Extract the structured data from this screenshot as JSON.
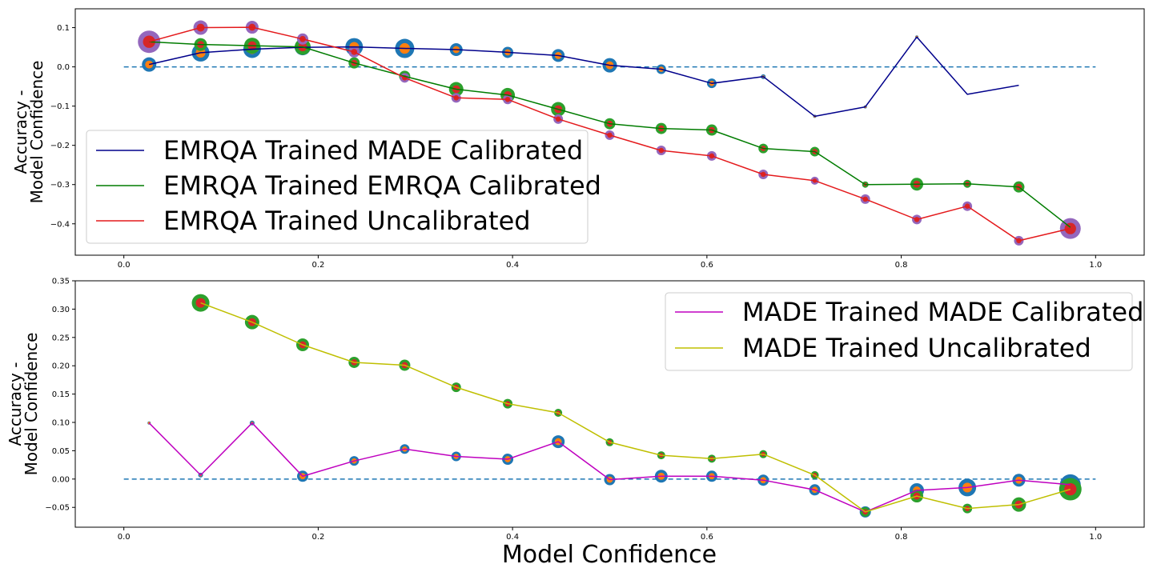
{
  "figure": {
    "xlabel": "Model Confidence",
    "colors": {
      "baseline": "#1f77b4",
      "scatter_blue": "#1f77b4",
      "scatter_orange": "#ff7f0e",
      "scatter_green": "#2ca02c",
      "scatter_red": "#d62728",
      "scatter_purple": "#9467bd"
    }
  },
  "chart_data": [
    {
      "type": "line",
      "ylabel_line1": "Accuracy -",
      "ylabel_line2": "Model Confidence",
      "xlim": [
        -0.05,
        1.05
      ],
      "ylim": [
        -0.48,
        0.148
      ],
      "xticks": [
        0.0,
        0.2,
        0.4,
        0.6,
        0.8,
        1.0
      ],
      "xtick_labels": [
        "0.0",
        "0.2",
        "0.4",
        "0.6",
        "0.8",
        "1.0"
      ],
      "yticks": [
        0.1,
        0.0,
        -0.1,
        -0.2,
        -0.3,
        -0.4
      ],
      "ytick_labels": [
        "0.1",
        "0.0",
        "−0.1",
        "−0.2",
        "−0.3",
        "−0.4"
      ],
      "legend_position": "lower-left",
      "baseline_y": 0.0,
      "series": [
        {
          "name": "EMRQA Trained MADE Calibrated",
          "color": "#00008b",
          "marker_color": "#1f77b4",
          "marker_inner": "#ff7f0e",
          "x": [
            0.026,
            0.079,
            0.132,
            0.184,
            0.237,
            0.289,
            0.342,
            0.395,
            0.447,
            0.5,
            0.553,
            0.605,
            0.658,
            0.711,
            0.763,
            0.816,
            0.868,
            0.921
          ],
          "y": [
            0.006,
            0.036,
            0.045,
            0.05,
            0.051,
            0.047,
            0.044,
            0.037,
            0.029,
            0.004,
            -0.006,
            -0.042,
            -0.025,
            -0.126,
            -0.102,
            0.076,
            -0.07,
            -0.047
          ],
          "sizes": [
            9,
            11,
            11,
            10,
            11,
            12,
            8,
            7,
            8,
            9,
            6,
            6,
            3,
            2,
            2,
            2,
            0,
            0
          ]
        },
        {
          "name": "EMRQA Trained EMRQA Calibrated",
          "color": "#007c00",
          "marker_color": "#2ca02c",
          "marker_inner": "#d62728",
          "x": [
            0.026,
            0.079,
            0.132,
            0.184,
            0.237,
            0.289,
            0.342,
            0.395,
            0.447,
            0.5,
            0.553,
            0.605,
            0.658,
            0.711,
            0.763,
            0.816,
            0.868,
            0.921,
            0.974
          ],
          "y": [
            0.064,
            0.057,
            0.054,
            0.051,
            0.01,
            -0.024,
            -0.057,
            -0.072,
            -0.108,
            -0.145,
            -0.157,
            -0.161,
            -0.208,
            -0.216,
            -0.3,
            -0.299,
            -0.298,
            -0.306,
            -0.409
          ],
          "sizes": [
            2,
            8,
            10,
            10,
            7,
            7,
            9,
            9,
            9,
            7,
            7,
            7,
            6,
            6,
            4,
            8,
            5,
            7,
            9
          ]
        },
        {
          "name": "EMRQA Trained Uncalibrated",
          "color": "#e41a1c",
          "marker_color": "#9467bd",
          "marker_inner": "#d62728",
          "x": [
            0.026,
            0.079,
            0.132,
            0.184,
            0.237,
            0.289,
            0.342,
            0.395,
            0.447,
            0.5,
            0.553,
            0.605,
            0.658,
            0.711,
            0.763,
            0.816,
            0.868,
            0.921,
            0.974
          ],
          "y": [
            0.064,
            0.1,
            0.101,
            0.071,
            0.038,
            -0.028,
            -0.079,
            -0.083,
            -0.133,
            -0.174,
            -0.213,
            -0.227,
            -0.274,
            -0.29,
            -0.337,
            -0.389,
            -0.355,
            -0.443,
            -0.412
          ],
          "sizes": [
            14,
            9,
            8,
            7,
            7,
            6,
            6,
            6,
            6,
            6,
            6,
            6,
            6,
            5,
            6,
            6,
            6,
            6,
            13
          ]
        }
      ]
    },
    {
      "type": "line",
      "ylabel_line1": "Accuracy -",
      "ylabel_line2": "Model Confidence",
      "xlim": [
        -0.05,
        1.05
      ],
      "ylim": [
        -0.085,
        0.35
      ],
      "xticks": [
        0.0,
        0.2,
        0.4,
        0.6,
        0.8,
        1.0
      ],
      "xtick_labels": [
        "0.0",
        "0.2",
        "0.4",
        "0.6",
        "0.8",
        "1.0"
      ],
      "yticks": [
        0.35,
        0.3,
        0.25,
        0.2,
        0.15,
        0.1,
        0.05,
        0.0,
        -0.05
      ],
      "ytick_labels": [
        "0.35",
        "0.30",
        "0.25",
        "0.20",
        "0.15",
        "0.10",
        "0.05",
        "0.00",
        "−0.05"
      ],
      "legend_position": "upper-right",
      "baseline_y": 0.0,
      "series": [
        {
          "name": "MADE Trained MADE Calibrated",
          "color": "#bf00bf",
          "marker_color": "#1f77b4",
          "marker_inner": "#ff7f0e",
          "x": [
            0.026,
            0.079,
            0.132,
            0.184,
            0.237,
            0.289,
            0.342,
            0.395,
            0.447,
            0.5,
            0.553,
            0.605,
            0.658,
            0.711,
            0.763,
            0.816,
            0.868,
            0.921,
            0.974
          ],
          "y": [
            0.099,
            0.007,
            0.099,
            0.005,
            0.032,
            0.053,
            0.04,
            0.035,
            0.066,
            -0.001,
            0.005,
            0.005,
            -0.002,
            -0.019,
            -0.058,
            -0.02,
            -0.015,
            -0.002,
            -0.01
          ],
          "sizes": [
            2,
            3,
            3,
            7,
            6,
            6,
            6,
            7,
            8,
            7,
            8,
            7,
            7,
            7,
            7,
            9,
            11,
            8,
            13
          ]
        },
        {
          "name": "MADE Trained Uncalibrated",
          "color": "#bfbf00",
          "marker_color": "#2ca02c",
          "marker_inner": "#d62728",
          "x": [
            0.079,
            0.132,
            0.184,
            0.237,
            0.289,
            0.342,
            0.395,
            0.447,
            0.5,
            0.553,
            0.605,
            0.658,
            0.711,
            0.763,
            0.816,
            0.868,
            0.921,
            0.974
          ],
          "y": [
            0.311,
            0.277,
            0.237,
            0.206,
            0.201,
            0.162,
            0.133,
            0.117,
            0.065,
            0.042,
            0.036,
            0.044,
            0.007,
            -0.058,
            -0.03,
            -0.052,
            -0.045,
            -0.018
          ],
          "sizes": [
            11,
            9,
            8,
            7,
            7,
            6,
            6,
            5,
            5,
            5,
            5,
            5,
            5,
            6,
            8,
            6,
            9,
            14
          ]
        }
      ]
    }
  ]
}
